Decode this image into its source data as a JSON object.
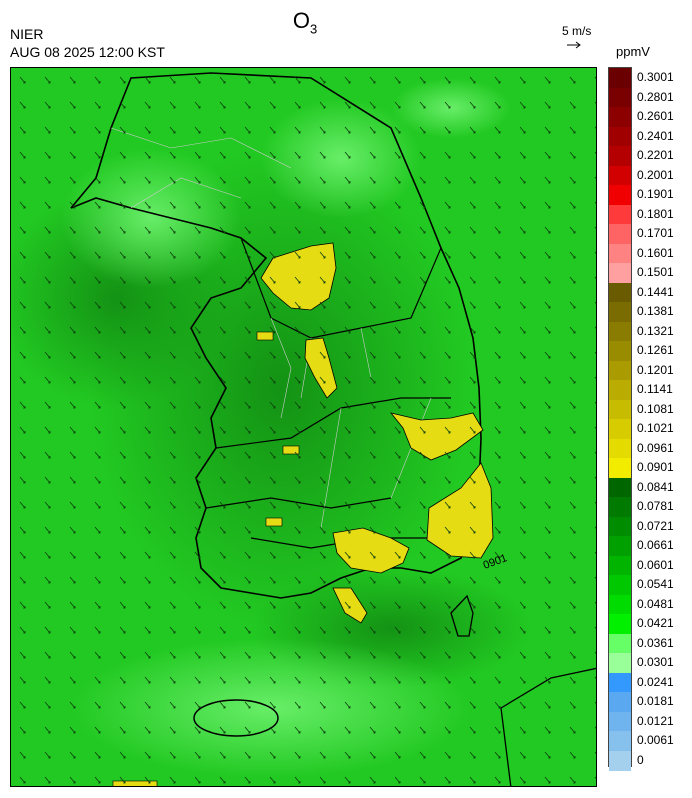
{
  "header": {
    "agency": "NIER",
    "timestamp": "AUG 08 2025 12:00 KST",
    "species": "O",
    "species_sub": "3",
    "vector_scale": "5 m/s",
    "unit": "ppmV"
  },
  "map": {
    "contour_label": "0901",
    "background_color": "#22c922",
    "high_ozone_color": "#e6dc14"
  },
  "colorbar": {
    "ticks": [
      "0.3001",
      "0.2801",
      "0.2601",
      "0.2401",
      "0.2201",
      "0.2001",
      "0.1901",
      "0.1801",
      "0.1701",
      "0.1601",
      "0.1501",
      "0.1441",
      "0.1381",
      "0.1321",
      "0.1261",
      "0.1201",
      "0.1141",
      "0.1081",
      "0.1021",
      "0.0961",
      "0.0901",
      "0.0841",
      "0.0781",
      "0.0721",
      "0.0661",
      "0.0601",
      "0.0541",
      "0.0481",
      "0.0421",
      "0.0361",
      "0.0301",
      "0.0241",
      "0.0181",
      "0.0121",
      "0.0061",
      "0"
    ],
    "colors": [
      "#6a0000",
      "#7a0000",
      "#8c0000",
      "#a00000",
      "#b40000",
      "#d20000",
      "#f00000",
      "#ff3a3a",
      "#ff6464",
      "#ff8282",
      "#ffa0a0",
      "#6a5a00",
      "#7a6c00",
      "#8a7c00",
      "#9a8c00",
      "#aa9c00",
      "#baac00",
      "#c8bc00",
      "#d6cc00",
      "#e4dc00",
      "#f2ec00",
      "#006600",
      "#007a00",
      "#008c00",
      "#00a000",
      "#00b400",
      "#00c800",
      "#00dc00",
      "#00f000",
      "#66ff66",
      "#99ff99",
      "#3399ff",
      "#5aa8f0",
      "#6fb4ee",
      "#86c0ec",
      "#a4d0ee"
    ]
  }
}
